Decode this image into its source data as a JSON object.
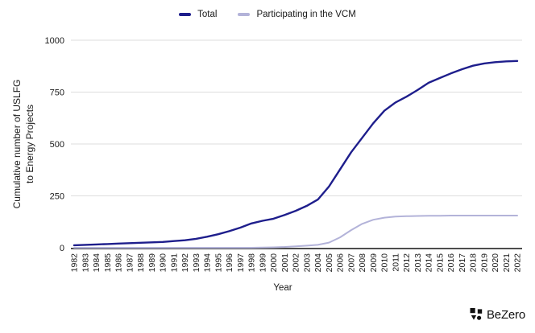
{
  "chart_data": {
    "type": "line",
    "title": "",
    "xlabel": "Year",
    "ylabel": "Cumulative number of USLFG to Energy Projects",
    "ylabel_lines": [
      "Cumulative number of USLFG",
      "to Energy Projects"
    ],
    "x": [
      1982,
      1983,
      1984,
      1985,
      1986,
      1987,
      1988,
      1989,
      1990,
      1991,
      1992,
      1993,
      1994,
      1995,
      1996,
      1997,
      1998,
      1999,
      2000,
      2001,
      2002,
      2003,
      2004,
      2005,
      2006,
      2007,
      2008,
      2009,
      2010,
      2011,
      2012,
      2013,
      2014,
      2015,
      2016,
      2017,
      2018,
      2019,
      2020,
      2021,
      2022
    ],
    "series": [
      {
        "name": "Total",
        "color": "#1e1e8c",
        "values": [
          12,
          14,
          16,
          18,
          20,
          22,
          24,
          26,
          28,
          32,
          36,
          43,
          53,
          65,
          80,
          97,
          117,
          130,
          140,
          158,
          178,
          202,
          232,
          295,
          377,
          460,
          530,
          600,
          660,
          700,
          728,
          760,
          795,
          818,
          840,
          860,
          877,
          888,
          894,
          898,
          900
        ]
      },
      {
        "name": "Participating in the VCM",
        "color": "#b3b3d9",
        "values": [
          0,
          0,
          0,
          0,
          0,
          0,
          0,
          0,
          0,
          0,
          0,
          0,
          0,
          0,
          0,
          0,
          0,
          1,
          2,
          4,
          7,
          10,
          14,
          25,
          50,
          85,
          115,
          135,
          145,
          150,
          152,
          153,
          154,
          154,
          155,
          155,
          155,
          155,
          155,
          155,
          155
        ]
      }
    ],
    "ylim": [
      0,
      1000
    ],
    "yticks": [
      0,
      250,
      500,
      750,
      1000
    ],
    "grid": true,
    "legend_position": "top"
  },
  "legend": {
    "items": [
      {
        "label": "Total",
        "color": "#1e1e8c"
      },
      {
        "label": "Participating in the VCM",
        "color": "#b3b3d9"
      }
    ]
  },
  "axes": {
    "x_title": "Year",
    "y_title_line1": "Cumulative number of USLFG",
    "y_title_line2": "to Energy Projects"
  },
  "branding": {
    "logo_text": "BeZero"
  },
  "colors": {
    "grid": "#dedede",
    "axis_line": "#4d4d4d",
    "text": "#1a1a1a",
    "total_line": "#1e1e8c",
    "vcm_line": "#b3b3d9",
    "background": "#ffffff"
  }
}
